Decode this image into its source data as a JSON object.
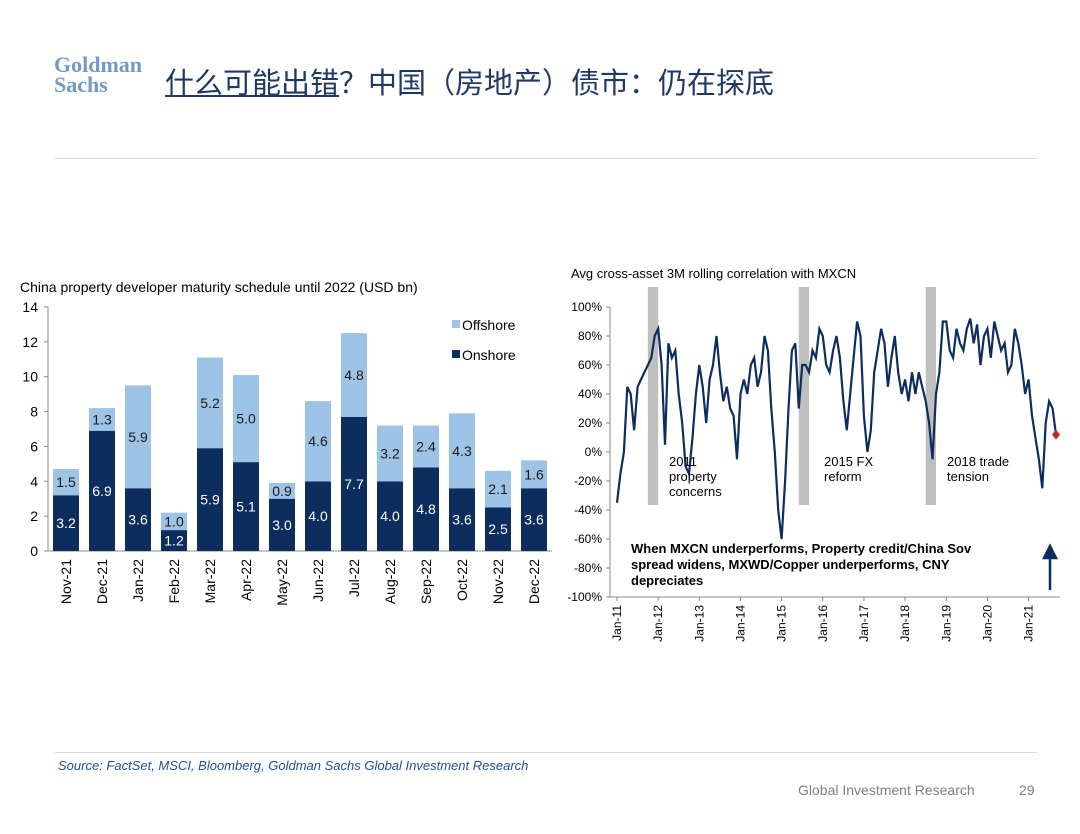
{
  "header": {
    "logo": [
      "Goldman",
      "Sachs"
    ],
    "title_link": "什么可能出错",
    "title_rest": "？中国（房地产）债市：仍在探底"
  },
  "footer": {
    "source": "Source: FactSet, MSCI, Bloomberg, Goldman Sachs Global Investment Research",
    "brand": "Global Investment Research",
    "page": "29"
  },
  "chart_data": [
    {
      "type": "stacked_bar",
      "title": "China property developer maturity schedule until 2022 (USD bn)",
      "categories": [
        "Nov-21",
        "Dec-21",
        "Jan-22",
        "Feb-22",
        "Mar-22",
        "Apr-22",
        "May-22",
        "Jun-22",
        "Jul-22",
        "Aug-22",
        "Sep-22",
        "Oct-22",
        "Nov-22",
        "Dec-22"
      ],
      "series": [
        {
          "name": "Onshore",
          "color": "#0c2d5e",
          "label_color": "#ffffff",
          "values": [
            3.2,
            6.9,
            3.6,
            1.2,
            5.9,
            5.1,
            3.0,
            4.0,
            7.7,
            4.0,
            4.8,
            3.6,
            2.5,
            3.6
          ],
          "value_labels": [
            "3.2",
            "6.9",
            "3.6",
            "1.2",
            "5.9",
            "5.1",
            "3.0",
            "4.0",
            "7.7",
            "4.0",
            "4.8",
            "3.6",
            "2.5",
            "3.6"
          ]
        },
        {
          "name": "Offshore",
          "color": "#9dc3e6",
          "label_color": "#1a1a1a",
          "values": [
            1.5,
            1.3,
            5.9,
            1.0,
            5.2,
            5.0,
            0.9,
            4.6,
            4.8,
            3.2,
            2.4,
            4.3,
            2.1,
            1.6
          ],
          "value_labels": [
            "1.5",
            "1.3",
            "5.9",
            "1.0",
            "5.2",
            "5.0",
            "0.9",
            "4.6",
            "4.8",
            "3.2",
            "2.4",
            "4.3",
            "2.1",
            "1.6"
          ]
        }
      ],
      "ylim": [
        0,
        14
      ],
      "yticks": [
        0,
        2,
        4,
        6,
        8,
        10,
        12,
        14
      ],
      "legend": "top-right"
    },
    {
      "type": "line",
      "title": "Avg cross-asset 3M rolling correlation with MXCN",
      "x": [
        "2011-01",
        "2011-02",
        "2011-03",
        "2011-04",
        "2011-05",
        "2011-06",
        "2011-07",
        "2011-08",
        "2011-09",
        "2011-10",
        "2011-11",
        "2011-12",
        "2012-01",
        "2012-02",
        "2012-03",
        "2012-04",
        "2012-05",
        "2012-06",
        "2012-07",
        "2012-08",
        "2012-09",
        "2012-10",
        "2012-11",
        "2012-12",
        "2013-01",
        "2013-02",
        "2013-03",
        "2013-04",
        "2013-05",
        "2013-06",
        "2013-07",
        "2013-08",
        "2013-09",
        "2013-10",
        "2013-11",
        "2013-12",
        "2014-01",
        "2014-02",
        "2014-03",
        "2014-04",
        "2014-05",
        "2014-06",
        "2014-07",
        "2014-08",
        "2014-09",
        "2014-10",
        "2014-11",
        "2014-12",
        "2015-01",
        "2015-02",
        "2015-03",
        "2015-04",
        "2015-05",
        "2015-06",
        "2015-07",
        "2015-08",
        "2015-09",
        "2015-10",
        "2015-11",
        "2015-12",
        "2016-01",
        "2016-02",
        "2016-03",
        "2016-04",
        "2016-05",
        "2016-06",
        "2016-07",
        "2016-08",
        "2016-09",
        "2016-10",
        "2016-11",
        "2016-12",
        "2017-01",
        "2017-02",
        "2017-03",
        "2017-04",
        "2017-05",
        "2017-06",
        "2017-07",
        "2017-08",
        "2017-09",
        "2017-10",
        "2017-11",
        "2017-12",
        "2018-01",
        "2018-02",
        "2018-03",
        "2018-04",
        "2018-05",
        "2018-06",
        "2018-07",
        "2018-08",
        "2018-09",
        "2018-10",
        "2018-11",
        "2018-12",
        "2019-01",
        "2019-02",
        "2019-03",
        "2019-04",
        "2019-05",
        "2019-06",
        "2019-07",
        "2019-08",
        "2019-09",
        "2019-10",
        "2019-11",
        "2019-12",
        "2020-01",
        "2020-02",
        "2020-03",
        "2020-04",
        "2020-05",
        "2020-06",
        "2020-07",
        "2020-08",
        "2020-09",
        "2020-10",
        "2020-11",
        "2020-12",
        "2021-01",
        "2021-02",
        "2021-03",
        "2021-04",
        "2021-05",
        "2021-06",
        "2021-07",
        "2021-08",
        "2021-09"
      ],
      "series": [
        {
          "name": "Avg cross-asset 3M rolling correlation",
          "color": "#0c2d5e",
          "values": [
            -35,
            -15,
            0,
            45,
            40,
            15,
            45,
            50,
            55,
            60,
            65,
            80,
            85,
            60,
            5,
            75,
            65,
            70,
            40,
            20,
            -10,
            -15,
            10,
            40,
            60,
            45,
            20,
            50,
            60,
            80,
            55,
            35,
            45,
            30,
            25,
            -5,
            40,
            50,
            40,
            60,
            65,
            45,
            55,
            80,
            70,
            30,
            0,
            -40,
            -60,
            -20,
            30,
            70,
            75,
            30,
            60,
            60,
            55,
            70,
            65,
            85,
            80,
            60,
            55,
            70,
            80,
            65,
            35,
            15,
            40,
            65,
            90,
            80,
            25,
            0,
            15,
            55,
            70,
            85,
            75,
            45,
            65,
            80,
            55,
            40,
            50,
            35,
            55,
            40,
            55,
            45,
            35,
            20,
            -5,
            40,
            55,
            90,
            90,
            70,
            65,
            85,
            75,
            70,
            85,
            92,
            75,
            88,
            60,
            80,
            85,
            65,
            90,
            80,
            70,
            75,
            55,
            60,
            85,
            75,
            60,
            40,
            50,
            25,
            10,
            -5,
            -25,
            20,
            35,
            30,
            12
          ]
        }
      ],
      "end_marker_color": "#c0282d",
      "xlim": [
        "2011-01",
        "2021-09"
      ],
      "xticks": [
        {
          "value": "2011-01",
          "label": "Jan-11"
        },
        {
          "value": "2012-01",
          "label": "Jan-12"
        },
        {
          "value": "2013-01",
          "label": "Jan-13"
        },
        {
          "value": "2014-01",
          "label": "Jan-14"
        },
        {
          "value": "2015-01",
          "label": "Jan-15"
        },
        {
          "value": "2016-01",
          "label": "Jan-16"
        },
        {
          "value": "2017-01",
          "label": "Jan-17"
        },
        {
          "value": "2018-01",
          "label": "Jan-18"
        },
        {
          "value": "2019-01",
          "label": "Jan-19"
        },
        {
          "value": "2020-01",
          "label": "Jan-20"
        },
        {
          "value": "2021-01",
          "label": "Jan-21"
        }
      ],
      "ylim": [
        -100,
        100
      ],
      "yticks": [
        {
          "value": -100,
          "label": "-100%"
        },
        {
          "value": -80,
          "label": "-80%"
        },
        {
          "value": -60,
          "label": "-60%"
        },
        {
          "value": -40,
          "label": "-40%"
        },
        {
          "value": -20,
          "label": "-20%"
        },
        {
          "value": 0,
          "label": "0%"
        },
        {
          "value": 20,
          "label": "20%"
        },
        {
          "value": 40,
          "label": "40%"
        },
        {
          "value": 60,
          "label": "60%"
        },
        {
          "value": 80,
          "label": "80%"
        },
        {
          "value": 100,
          "label": "100%"
        }
      ],
      "shaded_periods": [
        [
          "2011-10",
          "2012-01"
        ],
        [
          "2015-06",
          "2015-09"
        ],
        [
          "2018-07",
          "2018-10"
        ]
      ],
      "shade_color": "#bfbfbf",
      "annotations": [
        [
          "2011",
          "property",
          "concerns"
        ],
        [
          "2015 FX",
          "reform"
        ],
        [
          "2018 trade",
          "tension"
        ]
      ],
      "note": [
        "When MXCN underperforms, Property credit/China Sov",
        "spread widens, MXWD/Copper underperforms, CNY",
        "depreciates"
      ]
    }
  ]
}
